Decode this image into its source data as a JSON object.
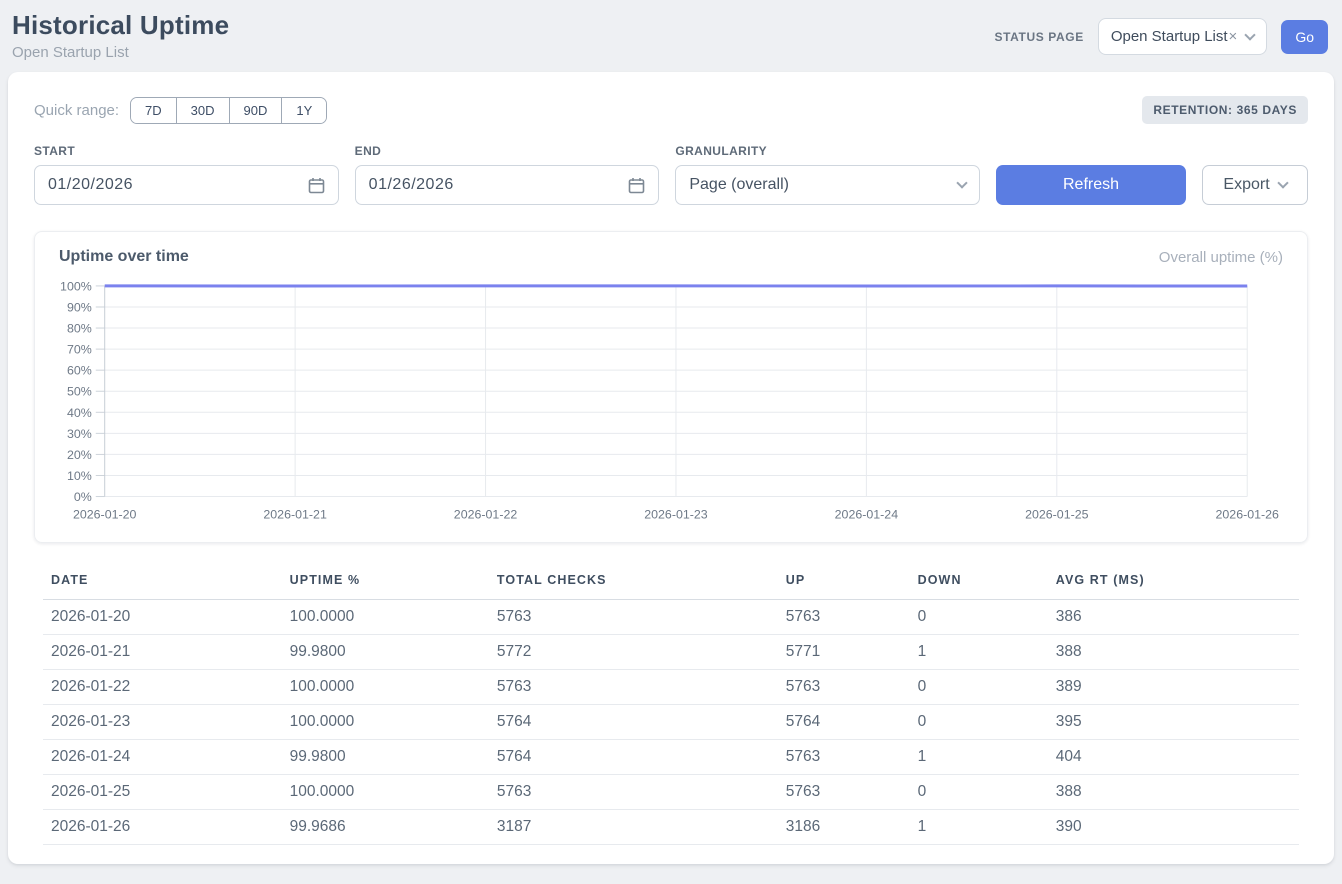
{
  "page": {
    "title": "Historical Uptime",
    "subtitle": "Open Startup List"
  },
  "header": {
    "status_page_label": "STATUS PAGE",
    "status_page_value": "Open Startup List",
    "clear_icon": "×",
    "go_label": "Go"
  },
  "controls": {
    "quick_range_label": "Quick range:",
    "quick_ranges": [
      "7D",
      "30D",
      "90D",
      "1Y"
    ],
    "retention_badge": "RETENTION: 365 DAYS",
    "start_label": "START",
    "start_value": "01/20/2026",
    "end_label": "END",
    "end_value": "01/26/2026",
    "granularity_label": "GRANULARITY",
    "granularity_value": "Page (overall)",
    "refresh_label": "Refresh",
    "export_label": "Export"
  },
  "chart_data": {
    "type": "line",
    "title": "Uptime over time",
    "legend": [
      "Overall uptime (%)"
    ],
    "legend_position": "top-right",
    "x": [
      "2026-01-20",
      "2026-01-21",
      "2026-01-22",
      "2026-01-23",
      "2026-01-24",
      "2026-01-25",
      "2026-01-26"
    ],
    "series": [
      {
        "name": "Overall uptime (%)",
        "values": [
          100.0,
          99.98,
          100.0,
          100.0,
          99.98,
          100.0,
          99.9686
        ]
      }
    ],
    "ylim": [
      0,
      100
    ],
    "y_tick_labels": [
      "0%",
      "10%",
      "20%",
      "30%",
      "40%",
      "50%",
      "60%",
      "70%",
      "80%",
      "90%",
      "100%"
    ],
    "grid": true,
    "line_color": "#7b82ee"
  },
  "table": {
    "columns": [
      "DATE",
      "UPTIME %",
      "TOTAL CHECKS",
      "UP",
      "DOWN",
      "AVG RT (MS)"
    ],
    "rows": [
      [
        "2026-01-20",
        "100.0000",
        "5763",
        "5763",
        "0",
        "386"
      ],
      [
        "2026-01-21",
        "99.9800",
        "5772",
        "5771",
        "1",
        "388"
      ],
      [
        "2026-01-22",
        "100.0000",
        "5763",
        "5763",
        "0",
        "389"
      ],
      [
        "2026-01-23",
        "100.0000",
        "5764",
        "5764",
        "0",
        "395"
      ],
      [
        "2026-01-24",
        "99.9800",
        "5764",
        "5763",
        "1",
        "404"
      ],
      [
        "2026-01-25",
        "100.0000",
        "5763",
        "5763",
        "0",
        "388"
      ],
      [
        "2026-01-26",
        "99.9686",
        "3187",
        "3186",
        "1",
        "390"
      ]
    ]
  },
  "colors": {
    "accent_blue": "#5b7de2",
    "line_indigo": "#7b82ee",
    "badge_bg": "#e4e8ed",
    "page_bg": "#eef0f3"
  }
}
